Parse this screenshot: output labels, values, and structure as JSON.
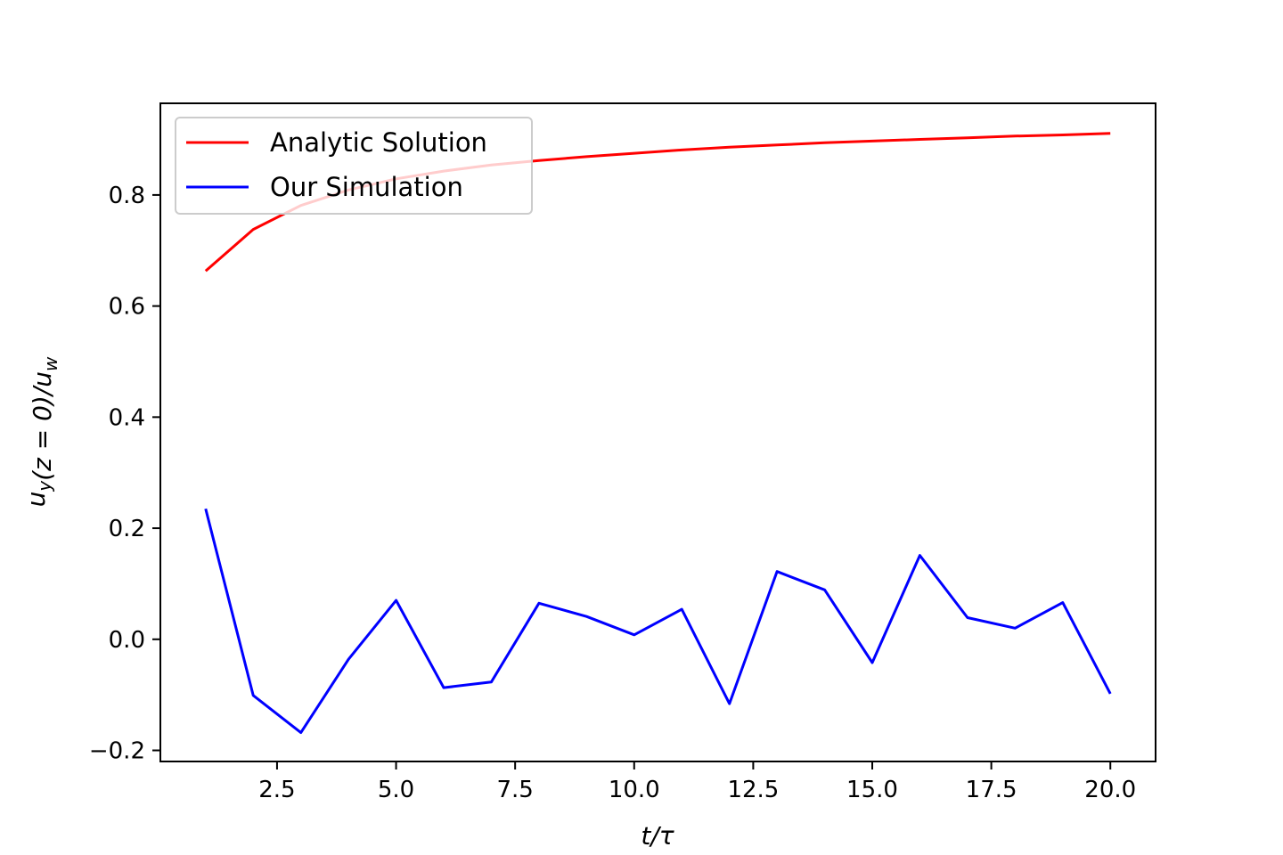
{
  "chart_data": {
    "type": "line",
    "title": "",
    "xlabel": "t/τ",
    "ylabel": "u_y(z = 0)/u_w",
    "xlim": [
      0.05,
      20.95
    ],
    "ylim": [
      -0.22,
      0.965
    ],
    "xticks": [
      2.5,
      5.0,
      7.5,
      10.0,
      12.5,
      15.0,
      17.5,
      20.0
    ],
    "xtick_labels": [
      "2.5",
      "5.0",
      "7.5",
      "10.0",
      "12.5",
      "15.0",
      "17.5",
      "20.0"
    ],
    "yticks": [
      -0.2,
      0.0,
      0.2,
      0.4,
      0.6,
      0.8
    ],
    "ytick_labels": [
      "−0.2",
      "0.0",
      "0.2",
      "0.4",
      "0.6",
      "0.8"
    ],
    "grid": false,
    "legend_position": "upper-left",
    "x": [
      1,
      2,
      3,
      4,
      5,
      6,
      7,
      8,
      9,
      10,
      11,
      12,
      13,
      14,
      15,
      16,
      17,
      18,
      19,
      20
    ],
    "series": [
      {
        "name": "Analytic Solution",
        "color": "#ff0000",
        "values": [
          0.663,
          0.738,
          0.781,
          0.809,
          0.829,
          0.843,
          0.854,
          0.862,
          0.869,
          0.875,
          0.881,
          0.886,
          0.89,
          0.894,
          0.897,
          0.9,
          0.903,
          0.906,
          0.908,
          0.911
        ]
      },
      {
        "name": "Our Simulation",
        "color": "#0000ff",
        "values": [
          0.235,
          -0.101,
          -0.168,
          -0.036,
          0.07,
          -0.087,
          -0.077,
          0.065,
          0.041,
          0.008,
          0.054,
          -0.116,
          0.122,
          0.089,
          -0.042,
          0.151,
          0.039,
          0.02,
          0.066,
          -0.098
        ]
      }
    ]
  }
}
